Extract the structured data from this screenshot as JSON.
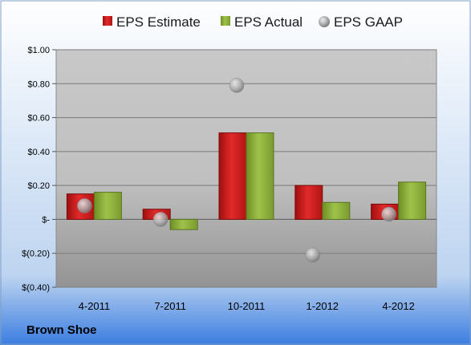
{
  "company": "Brown Shoe",
  "chart_data": {
    "type": "bar",
    "categories": [
      "4-2011",
      "7-2011",
      "10-2011",
      "1-2012",
      "4-2012"
    ],
    "series": [
      {
        "name": "EPS Estimate",
        "kind": "bar",
        "color": "#d42020",
        "values": [
          0.15,
          0.06,
          0.51,
          0.2,
          0.09
        ]
      },
      {
        "name": "EPS Actual",
        "kind": "bar",
        "color": "#8fb43c",
        "values": [
          0.16,
          -0.06,
          0.51,
          0.1,
          0.22
        ]
      },
      {
        "name": "EPS GAAP",
        "kind": "marker",
        "color": "#b8b8b8",
        "values": [
          0.08,
          0.0,
          0.79,
          -0.21,
          0.03
        ]
      }
    ],
    "ylim": [
      -0.4,
      1.0
    ],
    "yticks": [
      1.0,
      0.8,
      0.6,
      0.4,
      0.2,
      0.0,
      -0.2,
      -0.4
    ],
    "ytick_labels": [
      "$1.00",
      "$0.80",
      "$0.60",
      "$0.40",
      "$0.20",
      "$-",
      "$(0.20)",
      "$(0.40)"
    ],
    "grid": true,
    "legend": "top"
  }
}
